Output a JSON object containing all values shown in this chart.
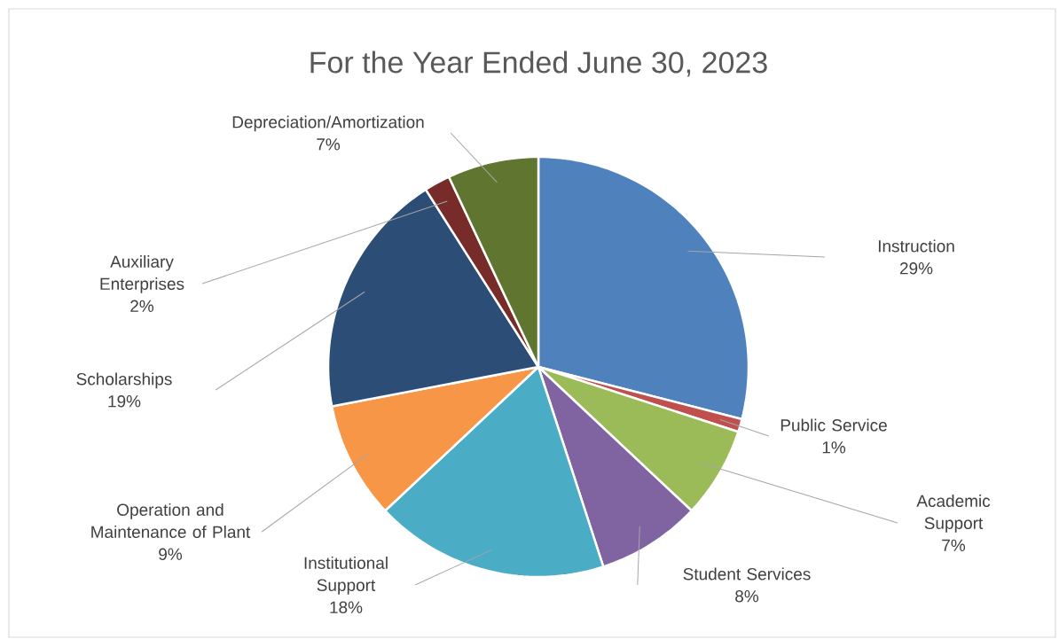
{
  "chart_data": {
    "type": "pie",
    "title": "For the Year Ended June 30, 2023",
    "categories": [
      "Instruction",
      "Public Service",
      "Academic Support",
      "Student Services",
      "Institutional Support",
      "Operation and Maintenance of Plant",
      "Scholarships",
      "Auxiliary Enterprises",
      "Depreciation/Amortization"
    ],
    "values": [
      29,
      1,
      7,
      8,
      18,
      9,
      19,
      2,
      7
    ],
    "value_labels": [
      "29%",
      "1%",
      "7%",
      "8%",
      "18%",
      "9%",
      "19%",
      "2%",
      "7%"
    ],
    "colors": [
      "#4f81bd",
      "#c0504d",
      "#9bbb59",
      "#8064a2",
      "#4bacc6",
      "#f79646",
      "#2c4d75",
      "#772c2a",
      "#5f7530"
    ]
  }
}
